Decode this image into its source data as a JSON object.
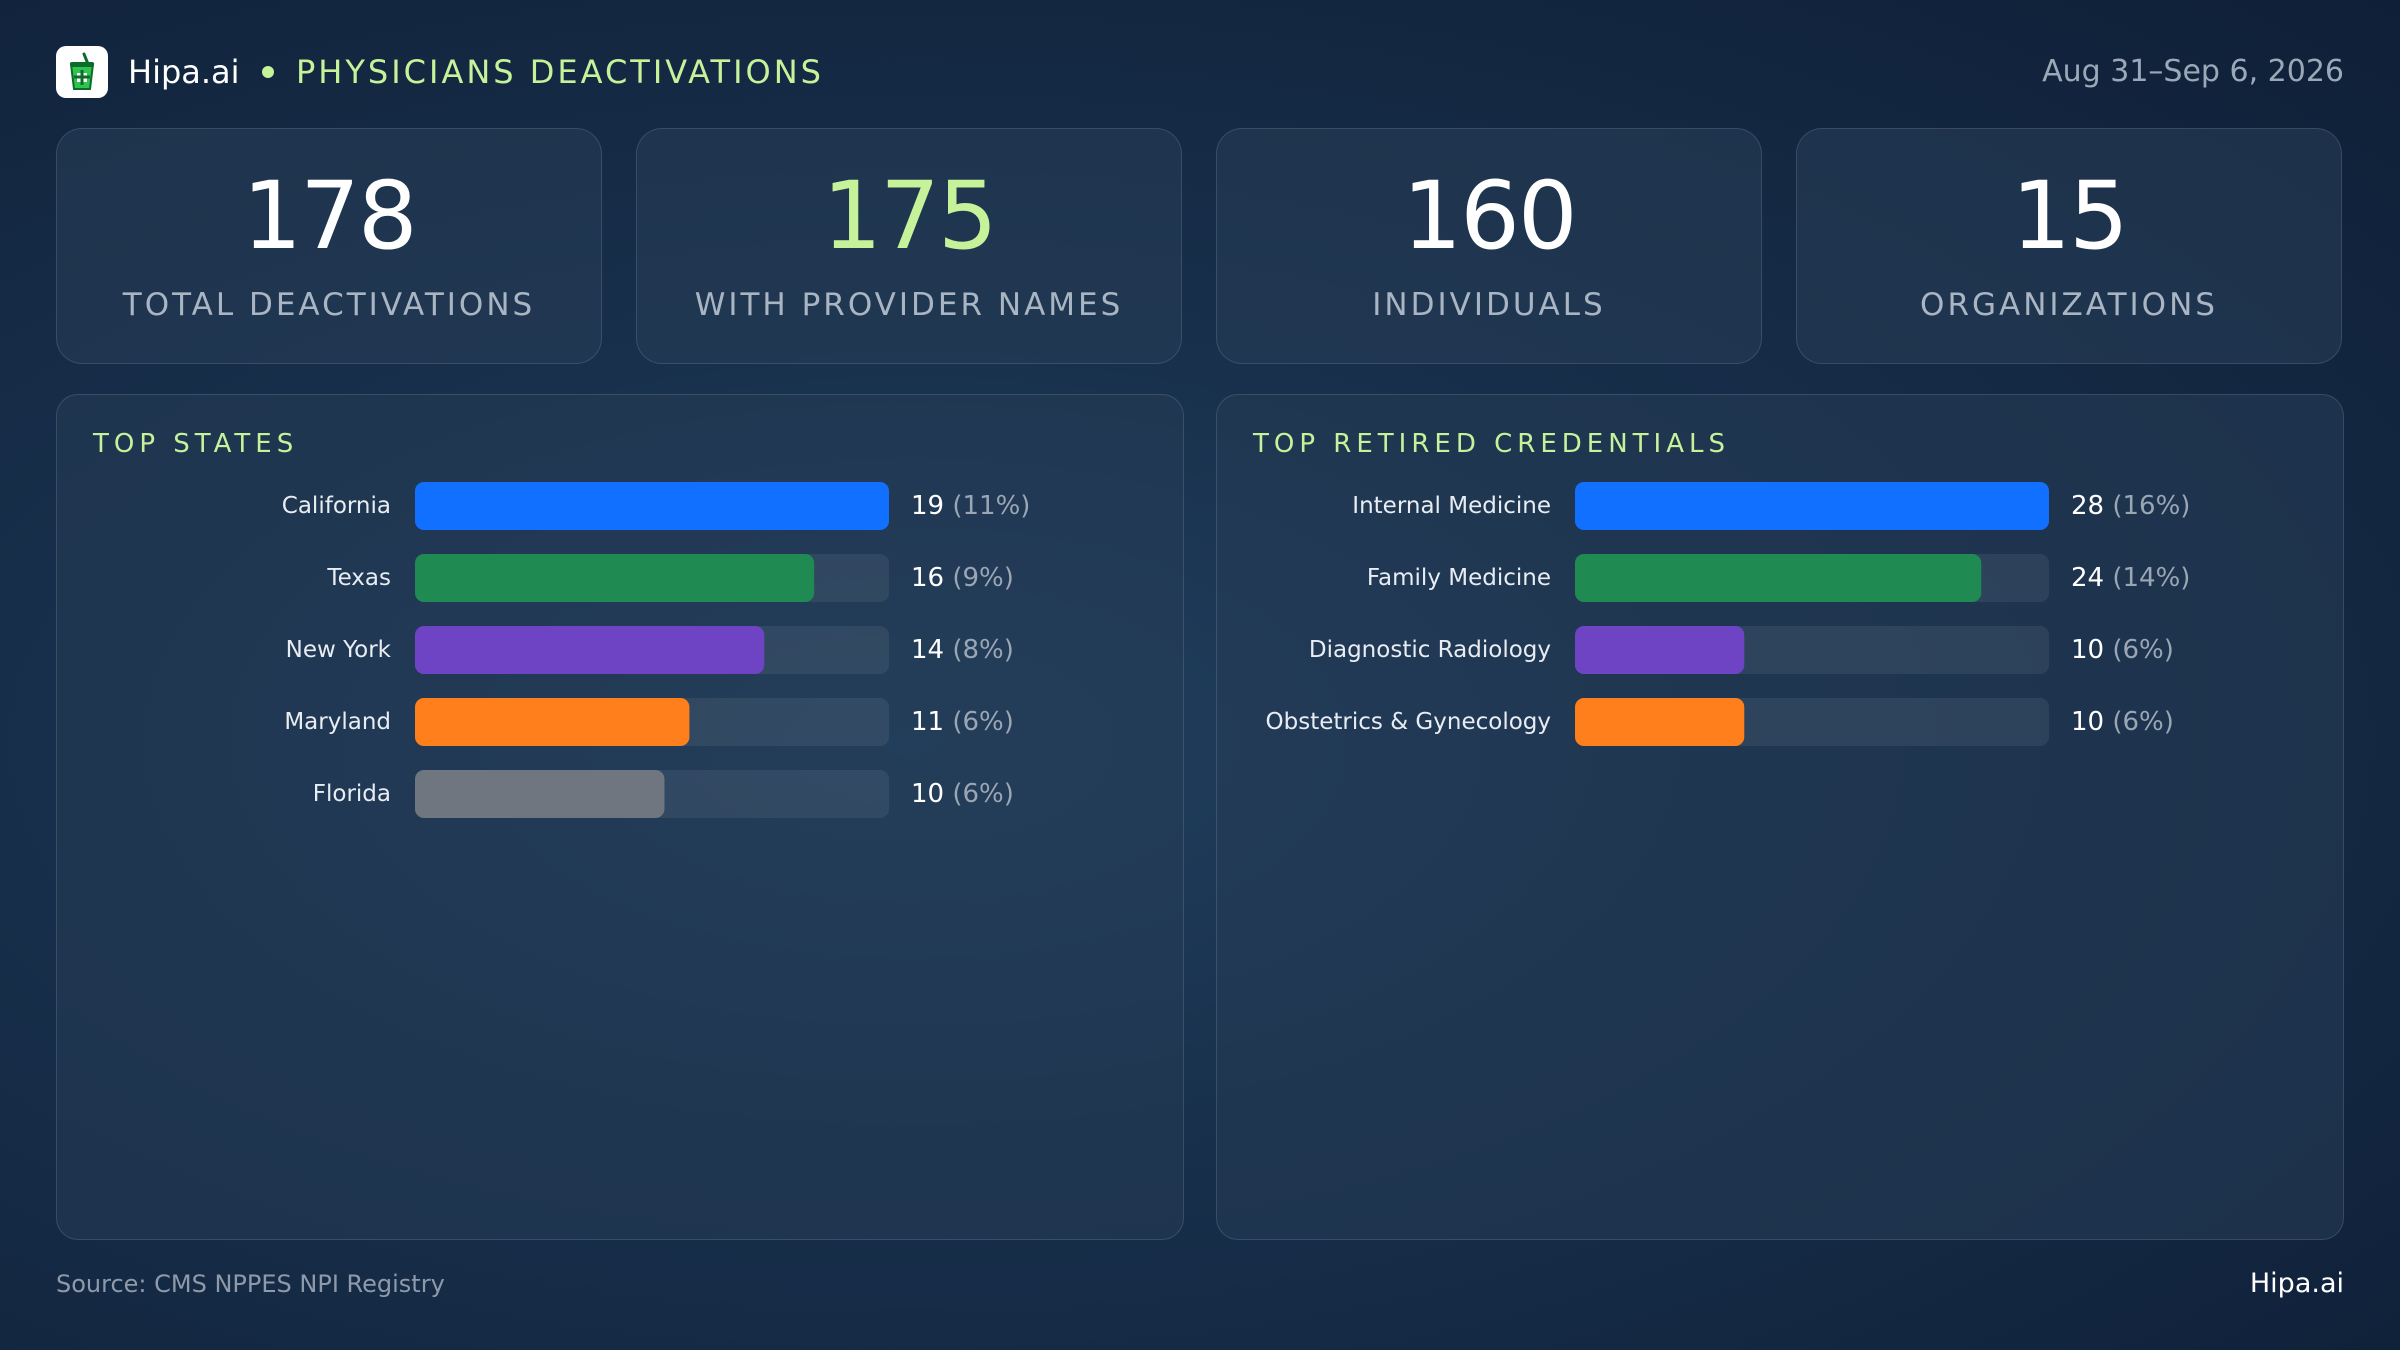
{
  "header": {
    "brand": "Hipa.ai",
    "title": "PHYSICIANS DEACTIVATIONS",
    "date_range": "Aug 31–Sep 6, 2026"
  },
  "kpis": [
    {
      "value": "178",
      "label": "TOTAL DEACTIVATIONS",
      "color": "#ffffff"
    },
    {
      "value": "175",
      "label": "WITH PROVIDER NAMES",
      "color": "#c6f29a"
    },
    {
      "value": "160",
      "label": "INDIVIDUALS",
      "color": "#ffffff"
    },
    {
      "value": "15",
      "label": "ORGANIZATIONS",
      "color": "#ffffff"
    }
  ],
  "chart_data": [
    {
      "type": "bar",
      "orientation": "horizontal",
      "title": "TOP STATES",
      "categories": [
        "California",
        "Texas",
        "New York",
        "Maryland",
        "Florida"
      ],
      "values": [
        19,
        16,
        14,
        11,
        10
      ],
      "value_labels": [
        "19",
        "16",
        "14",
        "11",
        "10"
      ],
      "percent_labels": [
        "(11%)",
        "(9%)",
        "(8%)",
        "(6%)",
        "(6%)"
      ],
      "colors": [
        "#1170ff",
        "#1f8a52",
        "#6e44c4",
        "#ff7f1c",
        "#6f767f"
      ],
      "xlim": [
        0,
        19
      ]
    },
    {
      "type": "bar",
      "orientation": "horizontal",
      "title": "TOP RETIRED CREDENTIALS",
      "categories": [
        "Internal Medicine",
        "Family Medicine",
        "Diagnostic Radiology",
        "Obstetrics & Gynecology"
      ],
      "values": [
        28,
        24,
        10,
        10
      ],
      "value_labels": [
        "28",
        "24",
        "10",
        "10"
      ],
      "percent_labels": [
        "(16%)",
        "(14%)",
        "(6%)",
        "(6%)"
      ],
      "colors": [
        "#1170ff",
        "#1f8a52",
        "#6e44c4",
        "#ff7f1c"
      ],
      "xlim": [
        0,
        28
      ]
    }
  ],
  "footer": {
    "source": "Source: CMS NPPES NPI Registry",
    "brand": "Hipa.ai"
  }
}
